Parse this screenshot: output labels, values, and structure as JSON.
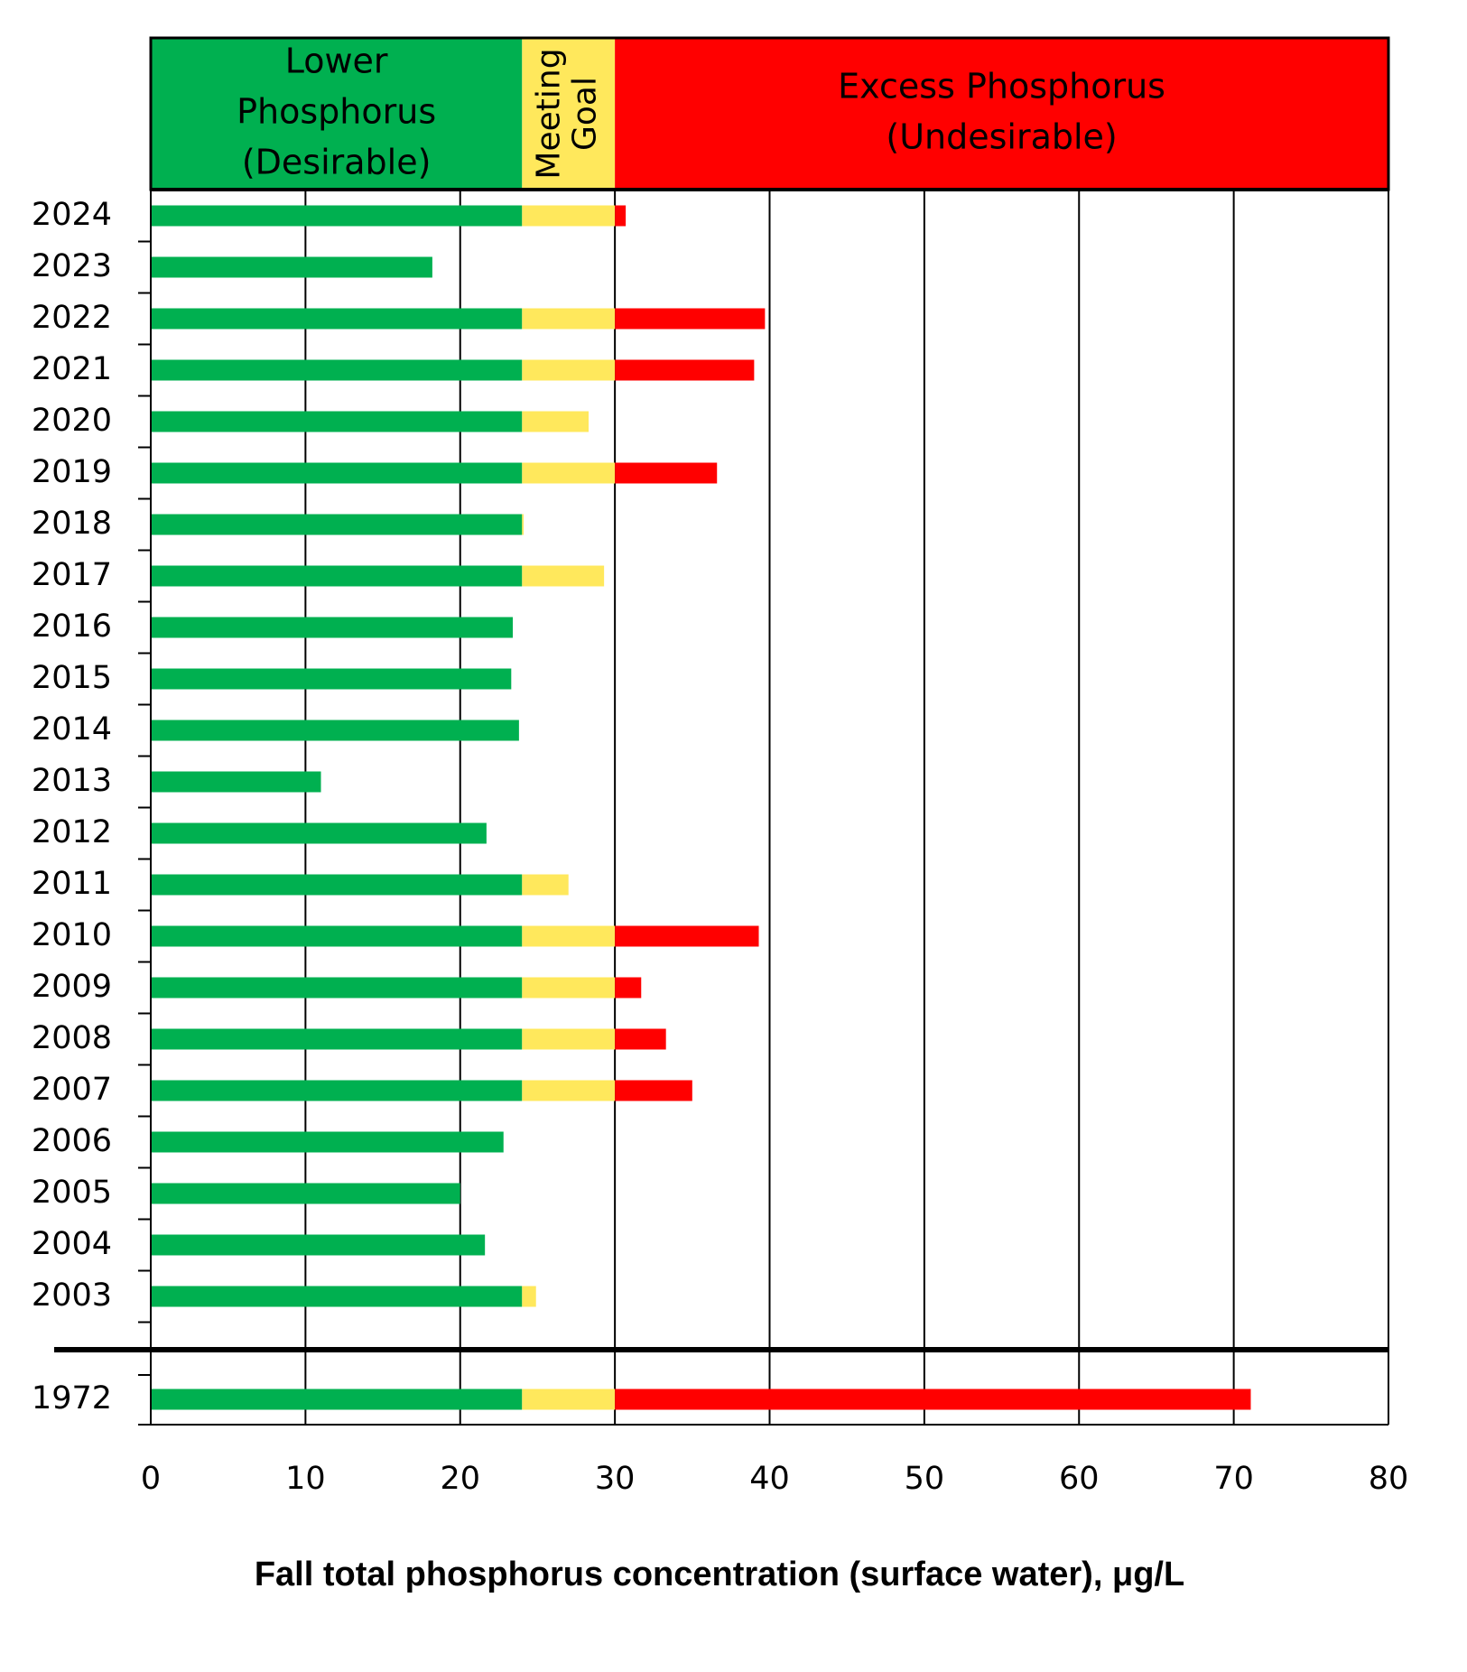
{
  "chart_data": {
    "type": "stacked-barh",
    "xlabel": "Fall total phosphorus concentration (surface water), μg/L",
    "categories": [
      "2024",
      "2023",
      "2022",
      "2021",
      "2020",
      "2019",
      "2018",
      "2017",
      "2016",
      "2015",
      "2014",
      "2013",
      "2012",
      "2011",
      "2010",
      "2009",
      "2008",
      "2007",
      "2006",
      "2005",
      "2004",
      "2003",
      "1972"
    ],
    "series": [
      {
        "color": "#00b050",
        "values": [
          24,
          18.2,
          24,
          24,
          24,
          24,
          24,
          24,
          23.4,
          23.3,
          23.8,
          11.0,
          21.7,
          24,
          24,
          24,
          24,
          24,
          22.8,
          20.0,
          21.6,
          24,
          24
        ]
      },
      {
        "color": "#ffe85c",
        "values": [
          6,
          null,
          6,
          6,
          4.3,
          6,
          0.1,
          5.3,
          null,
          null,
          null,
          null,
          null,
          3.0,
          6,
          6,
          6,
          6,
          null,
          null,
          null,
          0.9,
          6
        ]
      },
      {
        "color": "#ff0000",
        "values": [
          0.7,
          null,
          9.7,
          9.0,
          null,
          6.6,
          null,
          null,
          null,
          null,
          null,
          null,
          null,
          null,
          9.3,
          1.7,
          3.3,
          5.0,
          null,
          null,
          null,
          null,
          41.1
        ]
      }
    ],
    "zones": [
      {
        "lines": [
          "Lower",
          "Phosphorus",
          "(Desirable)"
        ],
        "from": 0,
        "to": 24,
        "color": "#00b050",
        "rotated": false
      },
      {
        "lines": [
          "Meeting",
          "Goal"
        ],
        "from": 24,
        "to": 30,
        "color": "#ffe85c",
        "rotated": true
      },
      {
        "lines": [
          "Excess Phosphorus",
          "(Undesirable)"
        ],
        "from": 30,
        "to": 80,
        "color": "#ff0000",
        "rotated": false
      }
    ],
    "xlim": [
      0,
      80
    ],
    "xticks": [
      0,
      10,
      20,
      30,
      40,
      50,
      60,
      70,
      80
    ],
    "grid": true
  }
}
